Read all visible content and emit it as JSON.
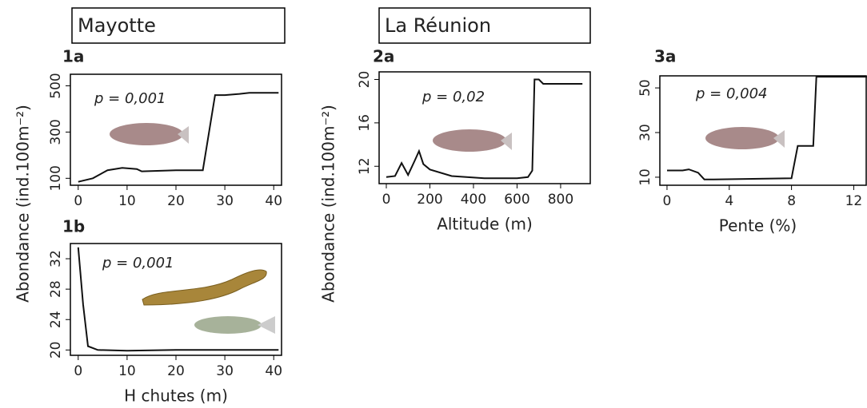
{
  "chart_data": [
    {
      "type": "line",
      "header": "Mayotte",
      "panel": "1a",
      "p_label": "p = 0,001",
      "y_label": "Abondance (ind.100m⁻²)",
      "x": [
        0,
        3,
        6,
        9,
        12,
        13,
        20,
        25.5,
        28,
        30,
        33,
        35,
        41
      ],
      "values": [
        85,
        100,
        135,
        145,
        140,
        130,
        135,
        135,
        460,
        460,
        465,
        470,
        470
      ],
      "color": "#111111",
      "xlim": [
        -1.6,
        41.6
      ],
      "ylim": [
        70,
        550
      ],
      "xticks": [
        0,
        10,
        20,
        30,
        40
      ],
      "yticks": [
        100,
        300,
        500
      ]
    },
    {
      "type": "line",
      "panel": "1b",
      "p_label": "p = 0,001",
      "x_label": "H chutes (m)",
      "x": [
        0,
        1,
        2,
        4,
        10,
        20,
        30,
        41
      ],
      "values": [
        33.5,
        26,
        20.5,
        20,
        19.9,
        20,
        20,
        20
      ],
      "color": "#111111",
      "xlim": [
        -1.6,
        41.6
      ],
      "ylim": [
        19.3,
        34
      ],
      "xticks": [
        0,
        10,
        20,
        30,
        40
      ],
      "yticks": [
        20,
        24,
        28,
        32
      ]
    },
    {
      "type": "line",
      "header": "La Réunion",
      "panel": "2a",
      "p_label": "p = 0,02",
      "y_label": "Abondance (ind.100m⁻²)",
      "x_label": "Altitude (m)",
      "x": [
        0,
        40,
        70,
        100,
        130,
        150,
        170,
        200,
        300,
        450,
        600,
        650,
        670,
        680,
        700,
        720,
        900
      ],
      "values": [
        11,
        11.1,
        12.3,
        11.2,
        12.5,
        13.4,
        12.2,
        11.7,
        11.1,
        10.9,
        10.9,
        11,
        11.6,
        20,
        20,
        19.6,
        19.6
      ],
      "color": "#111111",
      "xlim": [
        -33,
        936
      ],
      "ylim": [
        10.4,
        20.7
      ],
      "xticks": [
        0,
        200,
        400,
        600,
        800
      ],
      "yticks": [
        12,
        16,
        20
      ]
    },
    {
      "type": "line",
      "panel": "3a",
      "p_label": "p = 0,004",
      "x_label": "Pente (%)",
      "x": [
        0,
        1,
        1.4,
        2,
        2.4,
        3,
        8,
        8.4,
        9.4,
        9.6,
        13
      ],
      "values": [
        13,
        13,
        13.5,
        12,
        9,
        9,
        9.5,
        24,
        24,
        55,
        55
      ],
      "color": "#111111",
      "xlim": [
        -0.46,
        12.8
      ],
      "ylim": [
        6.4,
        55.4
      ],
      "xticks": [
        0,
        4,
        8,
        12
      ],
      "yticks": [
        10,
        30,
        50
      ]
    }
  ]
}
